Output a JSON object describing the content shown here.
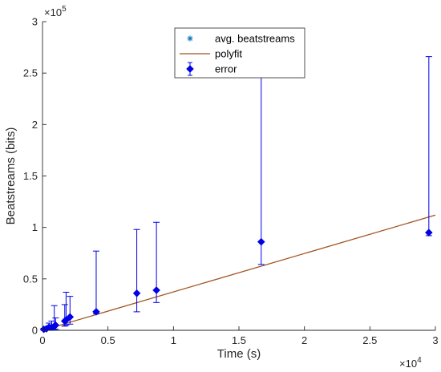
{
  "chart_data": {
    "type": "scatter",
    "xlabel": "Time (s)",
    "ylabel": "Beatstreams (bits)",
    "xlim": [
      0,
      30000
    ],
    "ylim": [
      0,
      300000
    ],
    "x_ticks": [
      0,
      5000,
      10000,
      15000,
      20000,
      25000,
      30000
    ],
    "x_tick_labels": [
      "0",
      "0.5",
      "1",
      "1.5",
      "2",
      "2.5",
      "3"
    ],
    "y_ticks": [
      0,
      50000,
      100000,
      150000,
      200000,
      250000,
      300000
    ],
    "y_tick_labels": [
      "0",
      "0.5",
      "1",
      "1.5",
      "2",
      "2.5",
      "3"
    ],
    "x_multiplier": {
      "base": "×10",
      "exp": "4"
    },
    "y_multiplier": {
      "base": "×10",
      "exp": "5"
    },
    "grid": false,
    "legend_position": "top-center",
    "legend": [
      {
        "label": "avg. beatstreams",
        "marker": "asterisk"
      },
      {
        "label": "polyfit",
        "marker": "line"
      },
      {
        "label": "error",
        "marker": "diamond-errorbar"
      }
    ],
    "colors": {
      "points": "#0000e6",
      "polyfit": "#a0521e",
      "avg_marker": "#0072bd",
      "axis": "#262626"
    },
    "polyfit_line": {
      "x": [
        0,
        30000
      ],
      "y": [
        0,
        112000
      ]
    },
    "series": [
      {
        "name": "error",
        "points": [
          {
            "x": 100,
            "y": 1000,
            "low": 0,
            "high": 2000
          },
          {
            "x": 300,
            "y": 1500,
            "low": 0,
            "high": 3000
          },
          {
            "x": 500,
            "y": 3000,
            "low": 0,
            "high": 7000
          },
          {
            "x": 700,
            "y": 3000,
            "low": 500,
            "high": 9000
          },
          {
            "x": 900,
            "y": 4000,
            "low": 1000,
            "high": 24000
          },
          {
            "x": 1000,
            "y": 5000,
            "low": 1000,
            "high": 12000
          },
          {
            "x": 1700,
            "y": 9000,
            "low": 4000,
            "high": 25000
          },
          {
            "x": 1800,
            "y": 10000,
            "low": 5000,
            "high": 37000
          },
          {
            "x": 2100,
            "y": 13000,
            "low": 6000,
            "high": 33000
          },
          {
            "x": 4100,
            "y": 18000,
            "low": 16000,
            "high": 77000
          },
          {
            "x": 7200,
            "y": 36000,
            "low": 18000,
            "high": 98000
          },
          {
            "x": 8700,
            "y": 39000,
            "low": 27000,
            "high": 105000
          },
          {
            "x": 16700,
            "y": 86000,
            "low": 64000,
            "high": 262000
          },
          {
            "x": 29500,
            "y": 95000,
            "low": 92000,
            "high": 266000
          }
        ]
      }
    ]
  }
}
